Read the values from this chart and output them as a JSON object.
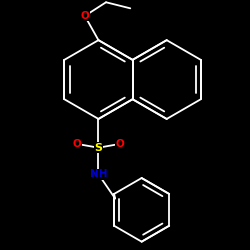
{
  "background_color": "#000000",
  "bond_color": "#ffffff",
  "atom_colors": {
    "O": "#ff0000",
    "S": "#ffff00",
    "N": "#0000cc",
    "C": "#ffffff",
    "H": "#ffffff"
  },
  "line_width": 1.3,
  "fig_size": [
    2.5,
    2.5
  ],
  "dpi": 100,
  "xlim": [
    -1.6,
    1.6
  ],
  "ylim": [
    -1.9,
    1.4
  ]
}
